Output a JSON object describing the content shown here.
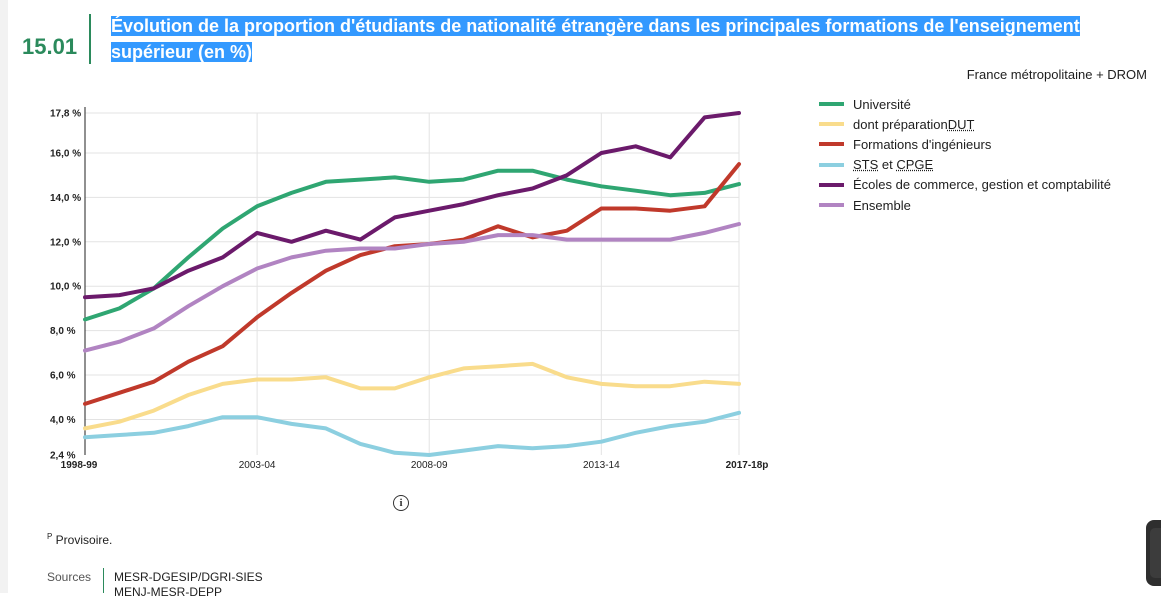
{
  "header": {
    "chart_number": "15.01",
    "title": "Évolution de la proportion d'étudiants de nationalité étrangère dans les principales formations de l'enseignement supérieur (en %)",
    "subtitle": "France métropolitaine + DROM"
  },
  "chart_data": {
    "type": "line",
    "title": "Évolution de la proportion d'étudiants de nationalité étrangère dans les principales formations de l'enseignement supérieur (en %)",
    "xlabel": "",
    "ylabel": "",
    "x_count": 20,
    "x_tick_labels": [
      {
        "index": 0,
        "label": "1998-99",
        "bold": true
      },
      {
        "index": 5,
        "label": "2003-04",
        "bold": false
      },
      {
        "index": 10,
        "label": "2008-09",
        "bold": false
      },
      {
        "index": 15,
        "label": "2013-14",
        "bold": false
      },
      {
        "index": 19,
        "label": "2017-18p",
        "bold": true
      }
    ],
    "ylim": [
      2.4,
      17.8
    ],
    "y_ticks": [
      {
        "value": 2.4,
        "label": "2,4 %"
      },
      {
        "value": 4.0,
        "label": "4,0 %"
      },
      {
        "value": 6.0,
        "label": "6,0 %"
      },
      {
        "value": 8.0,
        "label": "8,0 %"
      },
      {
        "value": 10.0,
        "label": "10,0 %"
      },
      {
        "value": 12.0,
        "label": "12,0 %"
      },
      {
        "value": 14.0,
        "label": "14,0 %"
      },
      {
        "value": 16.0,
        "label": "16,0 %"
      },
      {
        "value": 17.8,
        "label": "17,8 %"
      }
    ],
    "grid": true,
    "legend_position": "right",
    "series": [
      {
        "name": "Université",
        "color": "#2fa672",
        "values": [
          8.5,
          9.0,
          9.9,
          11.3,
          12.6,
          13.6,
          14.2,
          14.7,
          14.8,
          14.9,
          14.7,
          14.8,
          15.2,
          15.2,
          14.8,
          14.5,
          14.3,
          14.1,
          14.2,
          14.6
        ]
      },
      {
        "name": "dont préparation DUT",
        "color": "#f9dc8c",
        "values": [
          3.6,
          3.9,
          4.4,
          5.1,
          5.6,
          5.8,
          5.8,
          5.9,
          5.4,
          5.4,
          5.9,
          6.3,
          6.4,
          6.5,
          5.9,
          5.6,
          5.5,
          5.5,
          5.7,
          5.6
        ]
      },
      {
        "name": "Formations d'ingénieurs",
        "color": "#c0392b",
        "values": [
          4.7,
          5.2,
          5.7,
          6.6,
          7.3,
          8.6,
          9.7,
          10.7,
          11.4,
          11.8,
          11.9,
          12.1,
          12.7,
          12.2,
          12.5,
          13.5,
          13.5,
          13.4,
          13.6,
          15.5
        ]
      },
      {
        "name": "STS et CPGE",
        "color": "#8ccfe0",
        "values": [
          3.2,
          3.3,
          3.4,
          3.7,
          4.1,
          4.1,
          3.8,
          3.6,
          2.9,
          2.5,
          2.4,
          2.6,
          2.8,
          2.7,
          2.8,
          3.0,
          3.4,
          3.7,
          3.9,
          4.3
        ]
      },
      {
        "name": "Écoles de commerce, gestion et comptabilité",
        "color": "#6b1a6b",
        "values": [
          9.5,
          9.6,
          9.9,
          10.7,
          11.3,
          12.4,
          12.0,
          12.5,
          12.1,
          13.1,
          13.4,
          13.7,
          14.1,
          14.4,
          15.0,
          16.0,
          16.3,
          15.8,
          17.6,
          17.8
        ]
      },
      {
        "name": "Ensemble",
        "color": "#b184c2",
        "values": [
          7.1,
          7.5,
          8.1,
          9.1,
          10.0,
          10.8,
          11.3,
          11.6,
          11.7,
          11.7,
          11.9,
          12.0,
          12.3,
          12.3,
          12.1,
          12.1,
          12.1,
          12.1,
          12.4,
          12.8
        ]
      }
    ]
  },
  "legend": {
    "items": [
      {
        "label": "Université",
        "color": "#2fa672",
        "dotted": false
      },
      {
        "label": "dont préparation ",
        "suffix": "DUT",
        "color": "#f9dc8c",
        "dotted": false
      },
      {
        "label": "Formations d'ingénieurs",
        "color": "#c0392b",
        "dotted": false
      },
      {
        "prefix": "STS",
        "label": " et ",
        "suffix": "CPGE",
        "color": "#8ccfe0",
        "dotted": false
      },
      {
        "label": "Écoles de commerce, gestion et comptabilité",
        "color": "#6b1a6b",
        "dotted": false
      },
      {
        "label": "Ensemble",
        "color": "#b184c2",
        "dotted": false
      }
    ]
  },
  "info": {
    "icon": "info-icon",
    "glyph": "i"
  },
  "footnote": {
    "marker": "P",
    "text": " Provisoire."
  },
  "sources": {
    "label": "Sources",
    "lines": [
      "MESR-DGESIP/DGRI-SIES",
      "MENJ-MESR-DEPP"
    ]
  }
}
